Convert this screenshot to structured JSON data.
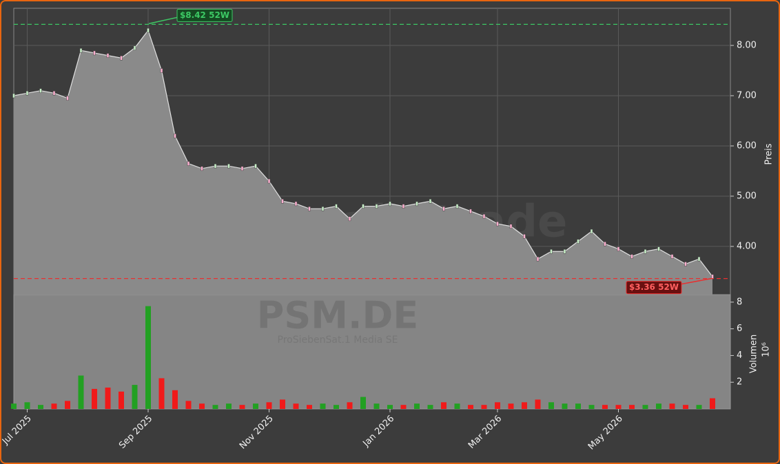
{
  "chart_data": {
    "type": "candlestick-volume",
    "watermark": "forexsignale.trade",
    "symbol": "PSM.DE",
    "company": "ProSiebenSat.1 Media SE",
    "y_label": "Preis",
    "y2_label": "Volumen",
    "y2_unit": "10⁶",
    "categories": [
      null,
      "Jul 2025",
      null,
      null,
      null,
      null,
      null,
      null,
      null,
      null,
      "Sep 2025",
      null,
      null,
      null,
      null,
      null,
      null,
      null,
      null,
      "Nov 2025",
      null,
      null,
      null,
      null,
      null,
      null,
      null,
      null,
      "Jan 2026",
      null,
      null,
      null,
      null,
      null,
      null,
      null,
      "Mar 2026",
      null,
      null,
      null,
      null,
      null,
      null,
      null,
      null,
      "May 2026",
      null,
      null,
      null,
      null,
      null,
      null,
      null
    ],
    "series": [
      {
        "name": "Preis",
        "color": "#e0e0e0",
        "fill": "#8a8a8a",
        "values": [
          7.0,
          7.05,
          7.1,
          7.05,
          6.95,
          7.9,
          7.85,
          7.8,
          7.75,
          7.95,
          8.3,
          7.5,
          6.2,
          5.65,
          5.55,
          5.6,
          5.6,
          5.55,
          5.6,
          5.3,
          4.9,
          4.85,
          4.75,
          4.75,
          4.8,
          4.55,
          4.8,
          4.8,
          4.85,
          4.8,
          4.85,
          4.9,
          4.75,
          4.8,
          4.7,
          4.6,
          4.45,
          4.4,
          4.2,
          3.75,
          3.9,
          3.9,
          4.1,
          4.3,
          4.05,
          3.95,
          3.8,
          3.9,
          3.95,
          3.8,
          3.65,
          3.75,
          3.4
        ]
      },
      {
        "name": "Volumen",
        "axis": "y2",
        "values": [
          0.4,
          0.5,
          0.3,
          0.4,
          0.6,
          2.5,
          1.5,
          1.6,
          1.3,
          1.8,
          7.7,
          2.3,
          1.4,
          0.6,
          0.4,
          0.3,
          0.4,
          0.3,
          0.4,
          0.5,
          0.7,
          0.4,
          0.3,
          0.4,
          0.3,
          0.5,
          0.9,
          0.4,
          0.3,
          0.3,
          0.4,
          0.3,
          0.5,
          0.4,
          0.3,
          0.3,
          0.5,
          0.4,
          0.5,
          0.7,
          0.5,
          0.4,
          0.4,
          0.3,
          0.3,
          0.3,
          0.3,
          0.3,
          0.4,
          0.4,
          0.3,
          0.3,
          0.8
        ]
      }
    ],
    "up_color": "#22a022",
    "down_color": "#f01a1a",
    "ylim": [
      3.04,
      8.74
    ],
    "yticks": [
      {
        "value": 4,
        "label": "4.00"
      },
      {
        "value": 5,
        "label": "5.00"
      },
      {
        "value": 6,
        "label": "6.00"
      },
      {
        "value": 7,
        "label": "7.00"
      },
      {
        "value": 8,
        "label": "8.00"
      }
    ],
    "y2lim": [
      0,
      8.56
    ],
    "y2ticks": [
      2,
      4,
      6,
      8
    ],
    "grid": true,
    "high": {
      "value": 8.42,
      "label": "$8.42 52W",
      "color": "#3cc864"
    },
    "low": {
      "value": 3.36,
      "label": "$3.36 52W",
      "color": "#e83030"
    }
  }
}
